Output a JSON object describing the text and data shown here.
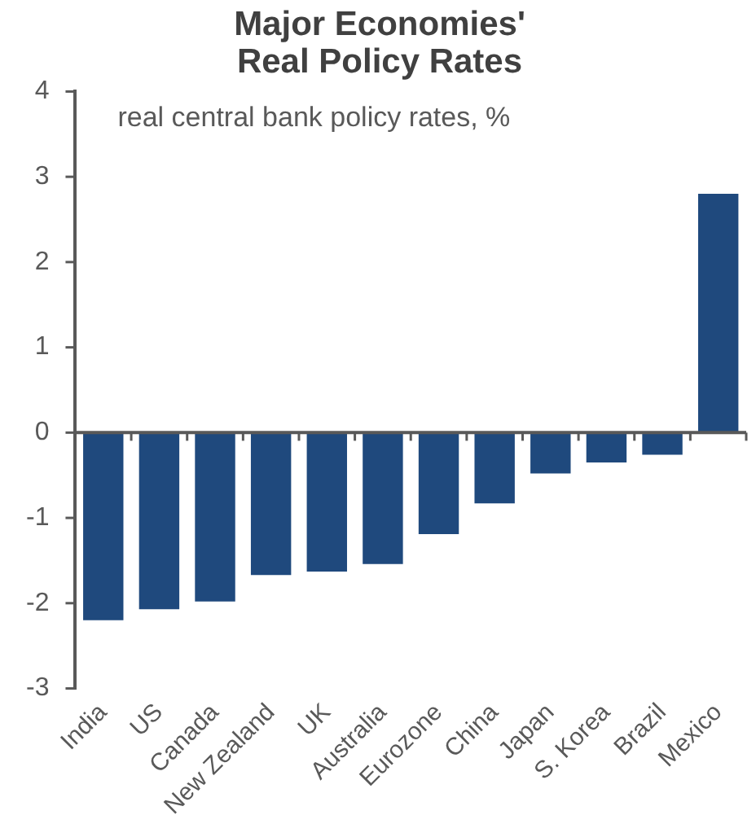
{
  "chart_data": {
    "type": "bar",
    "title": "Major Economies'\nReal Policy Rates",
    "annotations": [
      "real central bank policy rates, %"
    ],
    "categories": [
      "India",
      "US",
      "Canada",
      "New Zealand",
      "UK",
      "Australia",
      "Eurozone",
      "China",
      "Japan",
      "S. Korea",
      "Brazil",
      "Mexico"
    ],
    "values": [
      -2.2,
      -2.07,
      -1.98,
      -1.67,
      -1.63,
      -1.54,
      -1.19,
      -0.83,
      -0.48,
      -0.35,
      -0.26,
      2.8
    ],
    "color": "#1f497d",
    "ylim": [
      -3,
      4
    ],
    "yticks": [
      -3,
      -2,
      -1,
      0,
      1,
      2,
      3,
      4
    ],
    "legend": false
  }
}
